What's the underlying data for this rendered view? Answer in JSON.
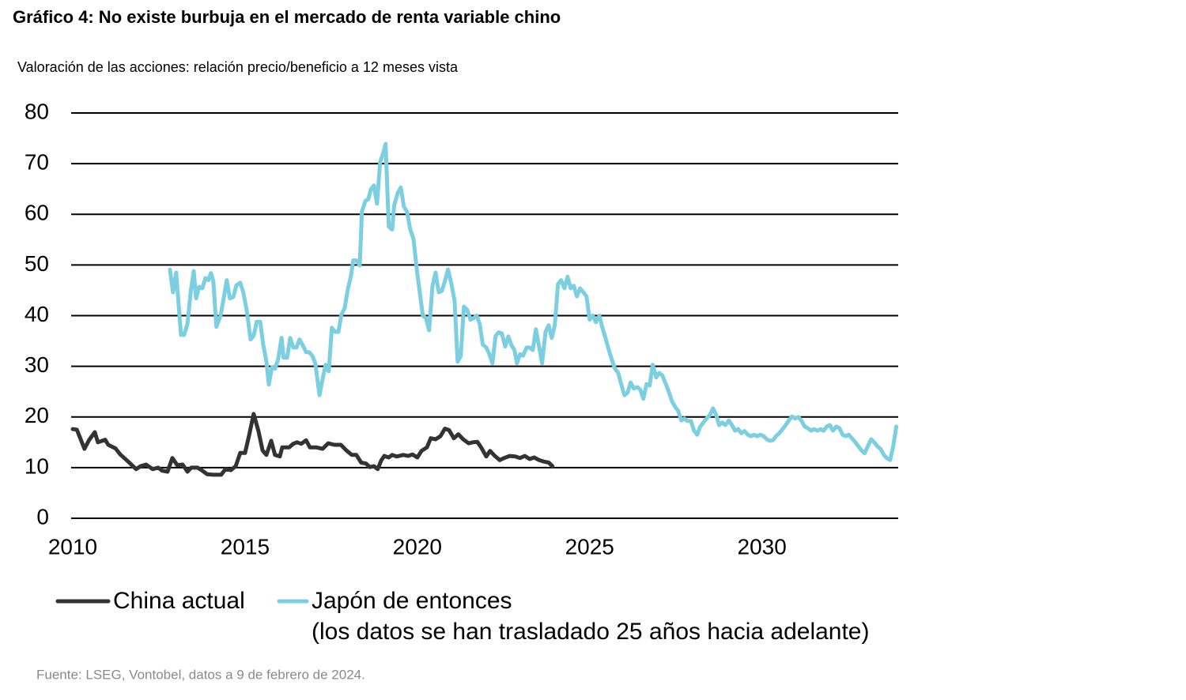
{
  "chart_data": {
    "type": "line",
    "title": "Gráfico 4: No existe burbuja en el mercado de renta variable chino",
    "subtitle": "Valoración de las acciones: relación precio/beneficio a 12 meses vista",
    "source": "Fuente: LSEG, Vontobel, datos a 9 de febrero de 2024.",
    "xlim": [
      2010,
      2034
    ],
    "xticks": [
      2010,
      2015,
      2020,
      2025,
      2030
    ],
    "ylim": [
      0,
      80
    ],
    "yticks": [
      0,
      10,
      20,
      30,
      40,
      50,
      60,
      70,
      80
    ],
    "grid": true,
    "series": [
      {
        "name": "China actual",
        "color": "#333333",
        "x": [
          2010.0,
          2010.12,
          2010.34,
          2010.48,
          2010.64,
          2010.73,
          2010.94,
          2011.03,
          2011.24,
          2011.38,
          2011.56,
          2011.7,
          2011.84,
          2011.97,
          2012.13,
          2012.32,
          2012.48,
          2012.59,
          2012.75,
          2012.89,
          2013.03,
          2013.19,
          2013.33,
          2013.44,
          2013.62,
          2013.76,
          2013.9,
          2014.08,
          2014.31,
          2014.43,
          2014.59,
          2014.73,
          2014.86,
          2015.0,
          2015.12,
          2015.25,
          2015.39,
          2015.51,
          2015.62,
          2015.76,
          2015.87,
          2016.01,
          2016.08,
          2016.28,
          2016.4,
          2016.51,
          2016.63,
          2016.77,
          2016.88,
          2017.06,
          2017.25,
          2017.41,
          2017.59,
          2017.78,
          2017.94,
          2018.1,
          2018.23,
          2018.37,
          2018.51,
          2018.62,
          2018.74,
          2018.85,
          2018.95,
          2019.04,
          2019.17,
          2019.27,
          2019.4,
          2019.59,
          2019.73,
          2019.86,
          2020.0,
          2020.12,
          2020.28,
          2020.39,
          2020.53,
          2020.67,
          2020.8,
          2020.92,
          2021.06,
          2021.19,
          2021.33,
          2021.49,
          2021.61,
          2021.74,
          2021.86,
          2022.0,
          2022.11,
          2022.25,
          2022.39,
          2022.52,
          2022.68,
          2022.84,
          2022.98,
          2023.12,
          2023.26,
          2023.39,
          2023.53,
          2023.67,
          2023.81,
          2023.92
        ],
        "values": [
          17.6,
          17.5,
          13.7,
          15.5,
          17,
          15,
          15.5,
          14.5,
          13.8,
          12.6,
          11.5,
          10.6,
          9.7,
          10.3,
          10.6,
          9.7,
          10,
          9.4,
          9.2,
          11.9,
          10.5,
          10.6,
          9.2,
          10,
          10,
          9.4,
          8.7,
          8.6,
          8.6,
          9.7,
          9.5,
          10.3,
          12.9,
          12.9,
          16.4,
          20.6,
          17.2,
          13.4,
          12.5,
          15.3,
          12.5,
          12.2,
          14,
          14,
          14.7,
          15,
          14.7,
          15.4,
          14,
          14,
          13.7,
          14.8,
          14.5,
          14.5,
          13.4,
          12.5,
          12.5,
          11,
          10.8,
          10.1,
          10.3,
          9.7,
          11.4,
          12.3,
          12,
          12.5,
          12.2,
          12.5,
          12.3,
          12.6,
          12,
          13.3,
          14,
          15.8,
          15.6,
          16.2,
          17.7,
          17.4,
          15.8,
          16.6,
          15.6,
          14.8,
          15,
          15.1,
          13.9,
          12.2,
          13.3,
          12.3,
          11.5,
          11.9,
          12.3,
          12.2,
          11.9,
          12.3,
          11.7,
          12,
          11.5,
          11.2,
          11,
          10.3
        ]
      },
      {
        "name": "Japón de entonces",
        "note": "(los datos se han trasladado 25 años hacia adelante)",
        "color": "#7ccfe0",
        "x": [
          2012.82,
          2012.91,
          2013.0,
          2013.14,
          2013.23,
          2013.33,
          2013.42,
          2013.51,
          2013.58,
          2013.67,
          2013.76,
          2013.85,
          2013.94,
          2014.01,
          2014.08,
          2014.17,
          2014.29,
          2014.38,
          2014.47,
          2014.56,
          2014.66,
          2014.75,
          2014.86,
          2014.95,
          2015.05,
          2015.16,
          2015.25,
          2015.34,
          2015.44,
          2015.53,
          2015.62,
          2015.69,
          2015.78,
          2015.87,
          2015.96,
          2016.06,
          2016.12,
          2016.22,
          2016.31,
          2016.4,
          2016.49,
          2016.58,
          2016.67,
          2016.77,
          2016.86,
          2016.95,
          2017.04,
          2017.16,
          2017.25,
          2017.34,
          2017.43,
          2017.52,
          2017.61,
          2017.71,
          2017.8,
          2017.89,
          2017.98,
          2018.07,
          2018.14,
          2018.23,
          2018.33,
          2018.39,
          2018.49,
          2018.58,
          2018.65,
          2018.74,
          2018.83,
          2018.92,
          2019.01,
          2019.08,
          2019.17,
          2019.27,
          2019.33,
          2019.43,
          2019.52,
          2019.61,
          2019.7,
          2019.79,
          2019.89,
          2019.98,
          2020.07,
          2020.16,
          2020.25,
          2020.34,
          2020.44,
          2020.53,
          2020.62,
          2020.71,
          2020.8,
          2020.89,
          2020.99,
          2021.08,
          2021.17,
          2021.26,
          2021.35,
          2021.44,
          2021.54,
          2021.63,
          2021.72,
          2021.81,
          2021.9,
          2022.0,
          2022.09,
          2022.18,
          2022.27,
          2022.36,
          2022.45,
          2022.55,
          2022.64,
          2022.73,
          2022.82,
          2022.89,
          2022.98,
          2023.07,
          2023.17,
          2023.26,
          2023.35,
          2023.44,
          2023.53,
          2023.62,
          2023.72,
          2023.81,
          2023.9,
          2023.99,
          2024.08,
          2024.17,
          2024.27,
          2024.36,
          2024.45,
          2024.54,
          2024.63,
          2024.72,
          2024.82,
          2024.91,
          2025.0,
          2025.09,
          2025.18,
          2025.28,
          2025.37,
          2025.46,
          2025.55,
          2025.64,
          2025.73,
          2025.83,
          2025.92,
          2026.01,
          2026.1,
          2026.19,
          2026.28,
          2026.38,
          2026.47,
          2026.56,
          2026.65,
          2026.74,
          2026.83,
          2026.93,
          2027.02,
          2027.11,
          2027.2,
          2027.29,
          2027.39,
          2027.48,
          2027.57,
          2027.66,
          2027.75,
          2027.84,
          2027.94,
          2028.03,
          2028.12,
          2028.21,
          2028.3,
          2028.39,
          2028.49,
          2028.58,
          2028.67,
          2028.76,
          2028.85,
          2028.94,
          2029.04,
          2029.13,
          2029.22,
          2029.31,
          2029.4,
          2029.5,
          2029.59,
          2029.68,
          2029.77,
          2029.86,
          2029.95,
          2030.05,
          2030.14,
          2030.23,
          2030.32,
          2030.41,
          2030.5,
          2030.6,
          2030.69,
          2030.78,
          2030.87,
          2030.96,
          2031.06,
          2031.15,
          2031.24,
          2031.33,
          2031.42,
          2031.51,
          2031.61,
          2031.7,
          2031.79,
          2031.88,
          2031.97,
          2032.06,
          2032.16,
          2032.25,
          2032.34,
          2032.43,
          2032.52,
          2032.61,
          2032.71,
          2032.8,
          2032.89,
          2032.98,
          2033.07,
          2033.17,
          2033.26,
          2033.35,
          2033.44,
          2033.53,
          2033.62,
          2033.72,
          2033.81,
          2033.9
        ],
        "values": [
          49.1,
          44.6,
          48.5,
          36.2,
          36.2,
          38.4,
          44.6,
          48.8,
          43.4,
          45.7,
          45.4,
          47.4,
          47,
          48.4,
          46.8,
          37.8,
          40,
          43.4,
          47,
          43.4,
          43.7,
          46,
          46.5,
          44.6,
          41,
          35.3,
          36,
          38.8,
          38.8,
          34.2,
          31,
          26.4,
          29.8,
          29.5,
          31.4,
          35.6,
          31.7,
          31.7,
          35.6,
          33.7,
          33.7,
          35.3,
          34.2,
          32.8,
          32.8,
          32.1,
          30.6,
          24.3,
          27.5,
          30.3,
          29,
          37.6,
          36.8,
          36.8,
          40.2,
          41.5,
          45.1,
          47.7,
          50.9,
          50.9,
          49.9,
          60.5,
          62.6,
          63,
          64.9,
          65.7,
          62.1,
          70.3,
          72.1,
          73.9,
          57.6,
          57,
          61.8,
          64.2,
          65.3,
          61.5,
          60.5,
          57.1,
          55.1,
          49.3,
          44.6,
          40,
          39.5,
          37.1,
          45.9,
          48.5,
          44.6,
          44.9,
          46.8,
          49.1,
          46.2,
          43,
          30.9,
          32,
          41.8,
          41.2,
          39.2,
          39.5,
          40,
          38.4,
          34.3,
          33.7,
          32.4,
          30.6,
          36,
          36.7,
          36.5,
          33.9,
          35.9,
          34.2,
          33.2,
          30.6,
          32.4,
          32.1,
          33.7,
          33.7,
          33.2,
          37.3,
          34,
          30.6,
          36.8,
          38.1,
          35.6,
          38.1,
          46.2,
          47,
          45.4,
          47.7,
          45.4,
          45.9,
          43.8,
          45.4,
          44.6,
          43.8,
          39.2,
          40,
          38.7,
          40,
          37.6,
          35.6,
          33.4,
          31.4,
          29.6,
          28.7,
          26.4,
          24.3,
          24.8,
          26.8,
          25.6,
          25.9,
          25.4,
          23.6,
          26.5,
          26.2,
          30.3,
          27.8,
          28.7,
          28.2,
          26.7,
          25.1,
          23.1,
          22,
          21.2,
          19.3,
          19.7,
          19.2,
          19.2,
          17.3,
          16.5,
          18.1,
          18.9,
          19.7,
          20.4,
          21.7,
          20.4,
          18.4,
          18.9,
          18.4,
          19.3,
          18.4,
          17.3,
          17.6,
          16.8,
          17.2,
          16.5,
          16.2,
          16.5,
          16.2,
          16.5,
          16.2,
          15.6,
          15.3,
          15.4,
          16.2,
          16.8,
          17.6,
          18.4,
          19.3,
          20.1,
          19.7,
          20,
          19.2,
          18.1,
          17.8,
          17.3,
          17.6,
          17.3,
          17.6,
          17.3,
          18.1,
          18.4,
          17.3,
          18.1,
          17.8,
          16.5,
          16.2,
          16.5,
          15.8,
          15,
          14.2,
          13.4,
          12.8,
          14.2,
          15.6,
          15,
          14.2,
          13.7,
          12.6,
          11.9,
          11.5,
          14.2,
          18.1
        ]
      }
    ]
  }
}
